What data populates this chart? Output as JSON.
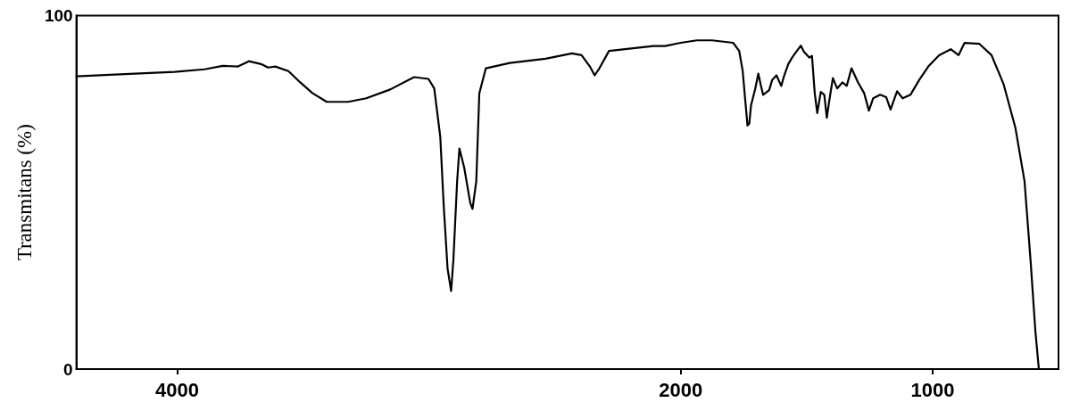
{
  "chart_data": {
    "type": "line",
    "ylabel": "Transmitans (%)",
    "xlim": [
      4400,
      500
    ],
    "xticks": [
      4000,
      2000,
      1000
    ],
    "ylim": [
      0,
      100
    ],
    "yticks": [
      0,
      100
    ],
    "grid": false,
    "series": [
      {
        "color": "#000000",
        "x": [
          4400,
          4247,
          4010,
          3891,
          3819,
          3758,
          3715,
          3667,
          3639,
          3610,
          3558,
          3511,
          3463,
          3406,
          3321,
          3249,
          3154,
          3059,
          3002,
          2979,
          2955,
          2941,
          2926,
          2912,
          2903,
          2888,
          2879,
          2860,
          2836,
          2827,
          2812,
          2800,
          2774,
          2679,
          2537,
          2432,
          2394,
          2361,
          2342,
          2323,
          2285,
          2109,
          2062,
          2000,
          1936,
          1876,
          1792,
          1768,
          1754,
          1745,
          1735,
          1728,
          1721,
          1704,
          1692,
          1683,
          1673,
          1649,
          1637,
          1620,
          1601,
          1589,
          1573,
          1558,
          1539,
          1523,
          1511,
          1489,
          1479,
          1468,
          1458,
          1444,
          1430,
          1420,
          1411,
          1396,
          1379,
          1358,
          1341,
          1322,
          1296,
          1272,
          1253,
          1236,
          1208,
          1184,
          1167,
          1141,
          1119,
          1088,
          1053,
          1017,
          974,
          928,
          897,
          873,
          814,
          766,
          718,
          671,
          635,
          611,
          592,
          578
        ],
        "values": [
          82.8,
          83.3,
          84.1,
          84.8,
          85.8,
          85.6,
          87.1,
          86.3,
          85.3,
          85.6,
          84.3,
          81.1,
          78.1,
          75.6,
          75.6,
          76.6,
          79.1,
          82.6,
          82.1,
          79.4,
          65.7,
          45.8,
          28.4,
          22.1,
          30.8,
          53.2,
          62.4,
          57.0,
          47.0,
          45.3,
          53.2,
          78.0,
          85.1,
          86.6,
          87.8,
          89.3,
          88.8,
          85.6,
          83.1,
          85.1,
          90.0,
          91.4,
          91.4,
          92.3,
          93.0,
          93.0,
          92.3,
          90.0,
          84.3,
          76.9,
          68.9,
          69.4,
          74.6,
          79.4,
          83.6,
          80.6,
          77.6,
          78.9,
          81.8,
          83.1,
          80.1,
          83.1,
          86.3,
          88.1,
          90.0,
          91.5,
          89.8,
          88.1,
          88.6,
          78.1,
          72.4,
          78.4,
          77.6,
          71.1,
          75.6,
          82.3,
          79.4,
          81.1,
          80.1,
          85.1,
          81.1,
          78.1,
          73.1,
          76.6,
          77.6,
          76.9,
          73.4,
          78.6,
          76.6,
          77.6,
          81.8,
          85.6,
          88.8,
          90.5,
          88.8,
          92.3,
          92.0,
          88.8,
          80.6,
          68.2,
          53.2,
          30.8,
          10.9,
          0
        ]
      }
    ]
  }
}
